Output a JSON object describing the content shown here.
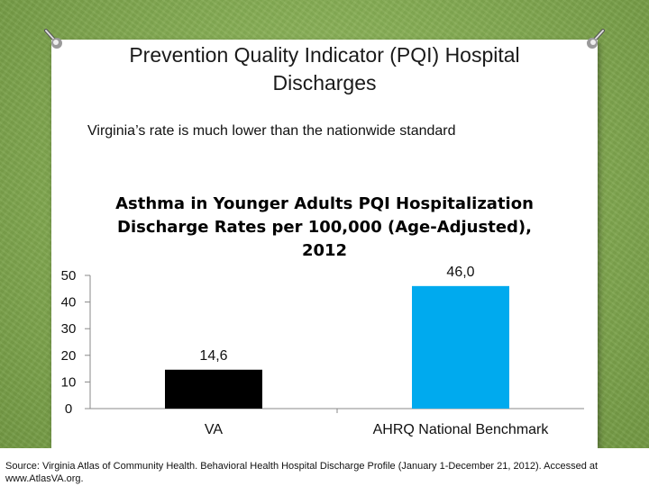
{
  "slide": {
    "title_line1": "Prevention Quality Indicator (PQI) Hospital",
    "title_line2": "Discharges",
    "subtitle": "Virginia’s rate is much lower than the nationwide standard",
    "source": "Source: Virginia Atlas of Community Health. Behavioral Health Hospital Discharge Profile (January 1-December 21, 2012). Accessed at www.AtlasVA.org."
  },
  "colors": {
    "bar_va": "#000000",
    "bar_benchmark": "#00aaee",
    "axis": "#888888"
  },
  "chart_data": {
    "type": "bar",
    "title": [
      "Asthma in Younger Adults PQI Hospitalization",
      "Discharge Rates per 100,000 (Age-Adjusted),",
      "2012"
    ],
    "categories": [
      "VA",
      "AHRQ National Benchmark"
    ],
    "values": [
      14.6,
      46.0
    ],
    "data_labels": [
      "14,6",
      "46,0"
    ],
    "yticks": [
      "0",
      "10",
      "20",
      "30",
      "40",
      "50"
    ],
    "ylim": [
      0,
      50
    ],
    "xlabel": "",
    "ylabel": "",
    "grid": false,
    "legend": "none"
  }
}
